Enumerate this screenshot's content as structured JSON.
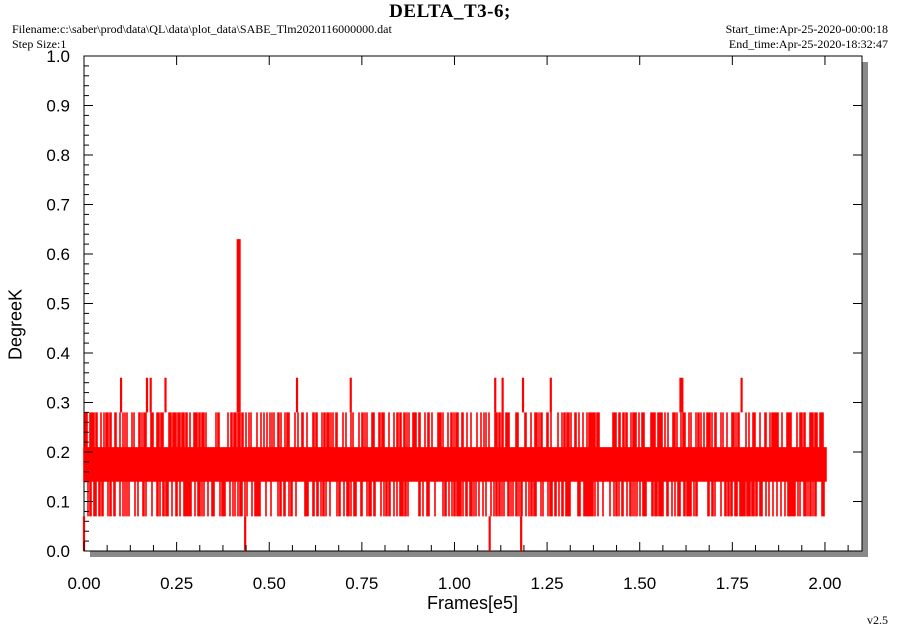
{
  "header": {
    "title": "DELTA_T3-6;",
    "filename": "Filename:c:\\saber\\prod\\data\\QL\\data\\plot_data\\SABE_Tlm2020116000000.dat",
    "step_size": "Step Size:1",
    "start_time": "Start_time:Apr-25-2020-00:00:18",
    "end_time": "End_time:Apr-25-2020-18:32:47",
    "version": "v2.5"
  },
  "colors": {
    "series": "#ff0000",
    "shadow": "#8a8a8a",
    "frame": "#000000"
  },
  "chart_data": {
    "type": "line",
    "title": "DELTA_T3-6;",
    "xlabel": "Frames[e5]",
    "ylabel": "DegreeK",
    "xlim": [
      0.0,
      2.1
    ],
    "ylim": [
      0.0,
      1.0
    ],
    "xticks": [
      "0.00",
      "0.25",
      "0.50",
      "0.75",
      "1.00",
      "1.25",
      "1.50",
      "1.75",
      "2.00"
    ],
    "yticks": [
      "0.0",
      "0.1",
      "0.2",
      "0.3",
      "0.4",
      "0.5",
      "0.6",
      "0.7",
      "0.8",
      "0.9",
      "1.0"
    ],
    "grid": false,
    "series": [
      {
        "x_start": 0.0,
        "x_end": 2.005,
        "band_levels": [
          0.07,
          0.14,
          0.21,
          0.28
        ],
        "baseline_low": 0.07,
        "baseline_high": 0.28,
        "spikes": [
          {
            "x": 0.1,
            "y": 0.35
          },
          {
            "x": 0.17,
            "y": 0.35
          },
          {
            "x": 0.18,
            "y": 0.35
          },
          {
            "x": 0.22,
            "y": 0.35
          },
          {
            "x": 0.415,
            "y": 0.63
          },
          {
            "x": 0.42,
            "y": 0.63
          },
          {
            "x": 0.575,
            "y": 0.35
          },
          {
            "x": 0.72,
            "y": 0.35
          },
          {
            "x": 1.11,
            "y": 0.35
          },
          {
            "x": 1.13,
            "y": 0.35
          },
          {
            "x": 1.185,
            "y": 0.35
          },
          {
            "x": 1.26,
            "y": 0.35
          },
          {
            "x": 1.61,
            "y": 0.35
          },
          {
            "x": 1.615,
            "y": 0.35
          },
          {
            "x": 1.775,
            "y": 0.35
          }
        ],
        "dips": [
          {
            "x": 0.0,
            "y": 0.0
          },
          {
            "x": 0.435,
            "y": 0.0
          },
          {
            "x": 1.095,
            "y": 0.0
          },
          {
            "x": 1.18,
            "y": 0.0
          }
        ]
      }
    ]
  }
}
